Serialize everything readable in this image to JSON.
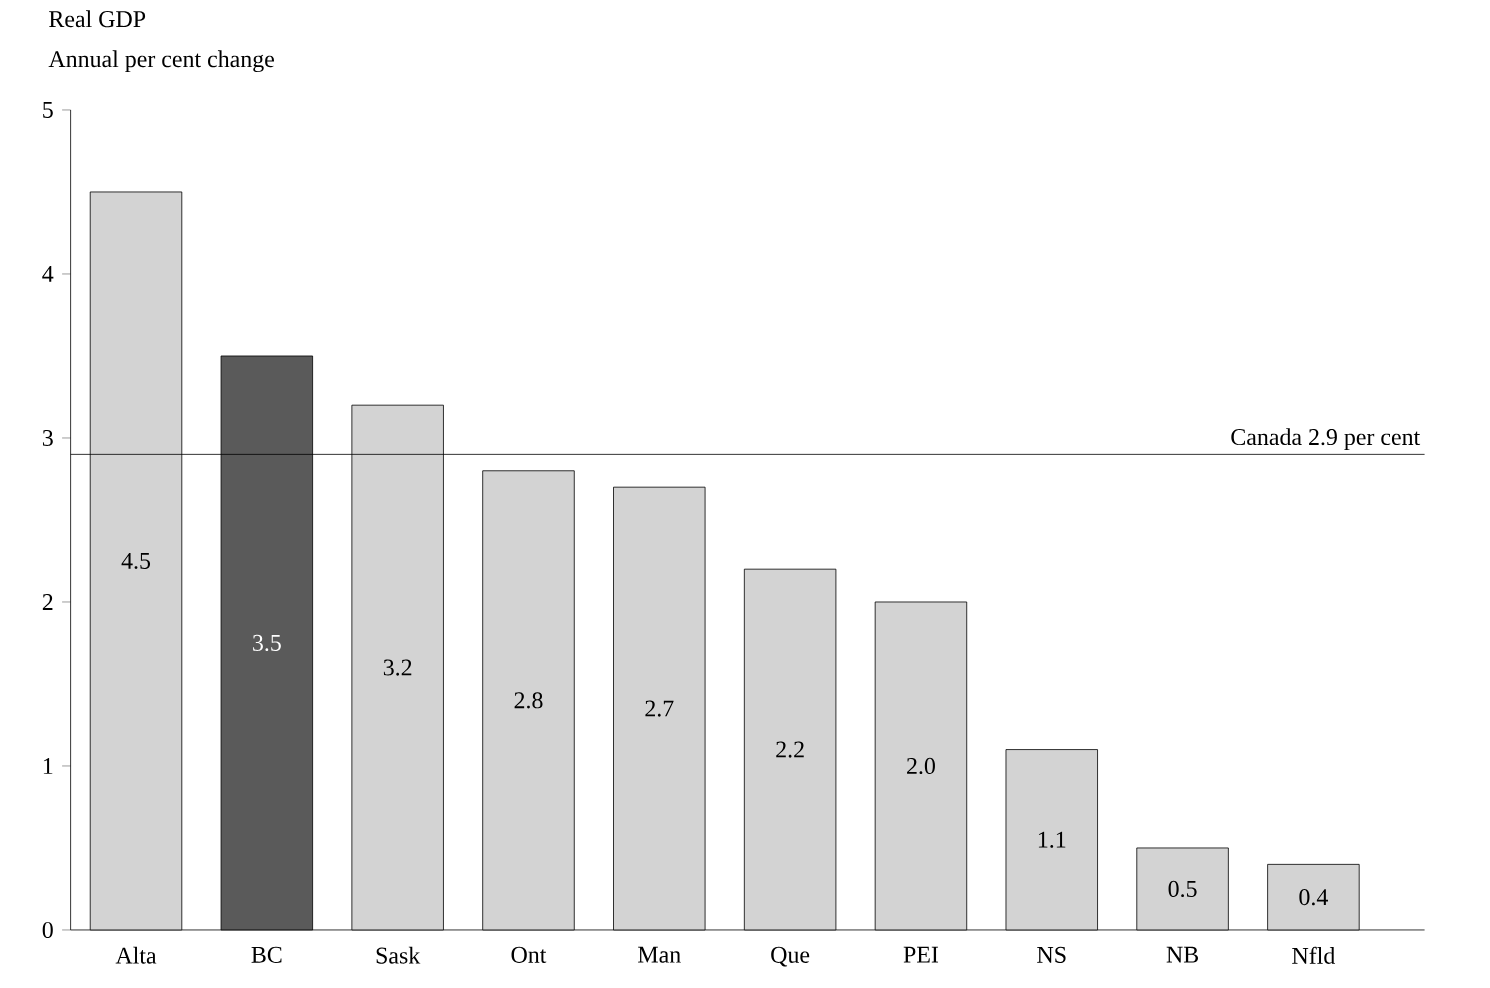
{
  "chart_data": {
    "type": "bar",
    "title": "Real GDP",
    "ylabel": "Annual per cent change",
    "categories": [
      "Alta",
      "BC",
      "Sask",
      "Ont",
      "Man",
      "Que",
      "PEI",
      "NS",
      "NB",
      "Nfld"
    ],
    "values": [
      4.5,
      3.5,
      3.2,
      2.8,
      2.7,
      2.2,
      2.0,
      1.1,
      0.5,
      0.4
    ],
    "colors": [
      "#d3d3d3",
      "#5a5a5a",
      "#d3d3d3",
      "#d3d3d3",
      "#d3d3d3",
      "#d3d3d3",
      "#d3d3d3",
      "#d3d3d3",
      "#d3d3d3",
      "#d3d3d3"
    ],
    "value_labels": [
      "4.5",
      "3.5",
      "3.2",
      "2.8",
      "2.7",
      "2.2",
      "2.0",
      "1.1",
      "0.5",
      "0.4"
    ],
    "ylim": [
      0,
      5
    ],
    "yticks": [
      0,
      1,
      2,
      3,
      4,
      5
    ],
    "ref_lines": [
      {
        "axis": "y",
        "value": 2.9,
        "label": "Canada 2.9 per cent"
      }
    ]
  }
}
